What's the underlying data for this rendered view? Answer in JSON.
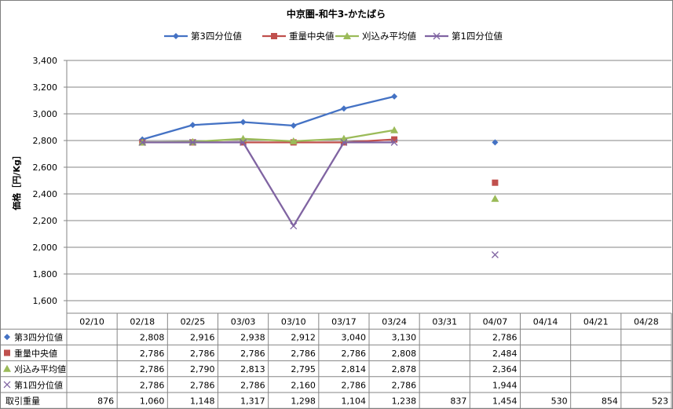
{
  "chart_data": {
    "type": "line",
    "title": "中京圏-和牛3-かたばら",
    "ylabel": "価格［円/Kg］",
    "ylim": [
      1600,
      3400
    ],
    "ystep": 200,
    "yticks": [
      "1,600",
      "1,800",
      "2,000",
      "2,200",
      "2,400",
      "2,600",
      "2,800",
      "3,000",
      "3,200",
      "3,400"
    ],
    "grid": "horizontal",
    "legend": "top",
    "categories": [
      "02/10",
      "02/18",
      "02/25",
      "03/03",
      "03/10",
      "03/17",
      "03/24",
      "03/31",
      "04/07",
      "04/14",
      "04/21",
      "04/28"
    ],
    "series": [
      {
        "name": "第3四分位値",
        "marker": "diamond",
        "color": "#4472c4",
        "values": [
          null,
          2808,
          2916,
          2938,
          2912,
          3040,
          3130,
          null,
          2786,
          null,
          null,
          null
        ],
        "labels": [
          "",
          "2,808",
          "2,916",
          "2,938",
          "2,912",
          "3,040",
          "3,130",
          "",
          "2,786",
          "",
          "",
          ""
        ]
      },
      {
        "name": "重量中央値",
        "marker": "square",
        "color": "#c0504d",
        "values": [
          null,
          2786,
          2786,
          2786,
          2786,
          2786,
          2808,
          null,
          2484,
          null,
          null,
          null
        ],
        "labels": [
          "",
          "2,786",
          "2,786",
          "2,786",
          "2,786",
          "2,786",
          "2,808",
          "",
          "2,484",
          "",
          "",
          ""
        ]
      },
      {
        "name": "刈込み平均値",
        "marker": "triangle",
        "color": "#9bbb59",
        "values": [
          null,
          2786,
          2790,
          2813,
          2795,
          2814,
          2878,
          null,
          2364,
          null,
          null,
          null
        ],
        "labels": [
          "",
          "2,786",
          "2,790",
          "2,813",
          "2,795",
          "2,814",
          "2,878",
          "",
          "2,364",
          "",
          "",
          ""
        ]
      },
      {
        "name": "第1四分位値",
        "marker": "x",
        "color": "#8064a2",
        "values": [
          null,
          2786,
          2786,
          2786,
          2160,
          2786,
          2786,
          null,
          1944,
          null,
          null,
          null
        ],
        "labels": [
          "",
          "2,786",
          "2,786",
          "2,786",
          "2,160",
          "2,786",
          "2,786",
          "",
          "1,944",
          "",
          "",
          ""
        ]
      }
    ],
    "table_extra_row": {
      "name": "取引重量",
      "values": [
        876,
        1060,
        1148,
        1317,
        1298,
        1104,
        1238,
        837,
        1454,
        530,
        854,
        523
      ],
      "labels": [
        "876",
        "1,060",
        "1,148",
        "1,317",
        "1,298",
        "1,104",
        "1,238",
        "837",
        "1,454",
        "530",
        "854",
        "523"
      ]
    }
  }
}
